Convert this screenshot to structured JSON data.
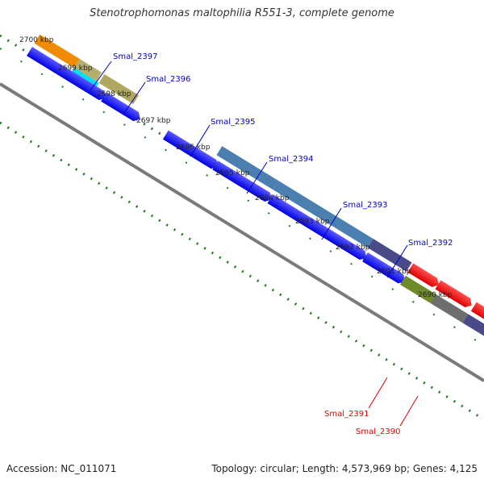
{
  "title": "Stenotrophomonas maltophilia R551-3, complete genome",
  "footer": {
    "accession": "Accession: NC_011071",
    "summary": "Topology: circular; Length: 4,573,969 bp; Genes: 4,125"
  },
  "colors": {
    "backbone": "#8a8a8a",
    "tick": "#1f7a1f",
    "label_blue": "#0000cc",
    "label_red": "#dd0000",
    "cds_blue": "#1a1aff"
  },
  "ruler_labels": [
    "2700 kbp",
    "2699 kbp",
    "2698 kbp",
    "2697 kbp",
    "2696 kbp",
    "2695 kbp",
    "2694 kbp",
    "2693 kbp",
    "2692 kbp",
    "2691 kbp",
    "2690 kbp"
  ],
  "gene_labels": [
    "Smal_2397",
    "Smal_2396",
    "Smal_2395",
    "Smal_2394",
    "Smal_2393",
    "Smal_2392",
    "Smal_2391",
    "Smal_2390"
  ]
}
